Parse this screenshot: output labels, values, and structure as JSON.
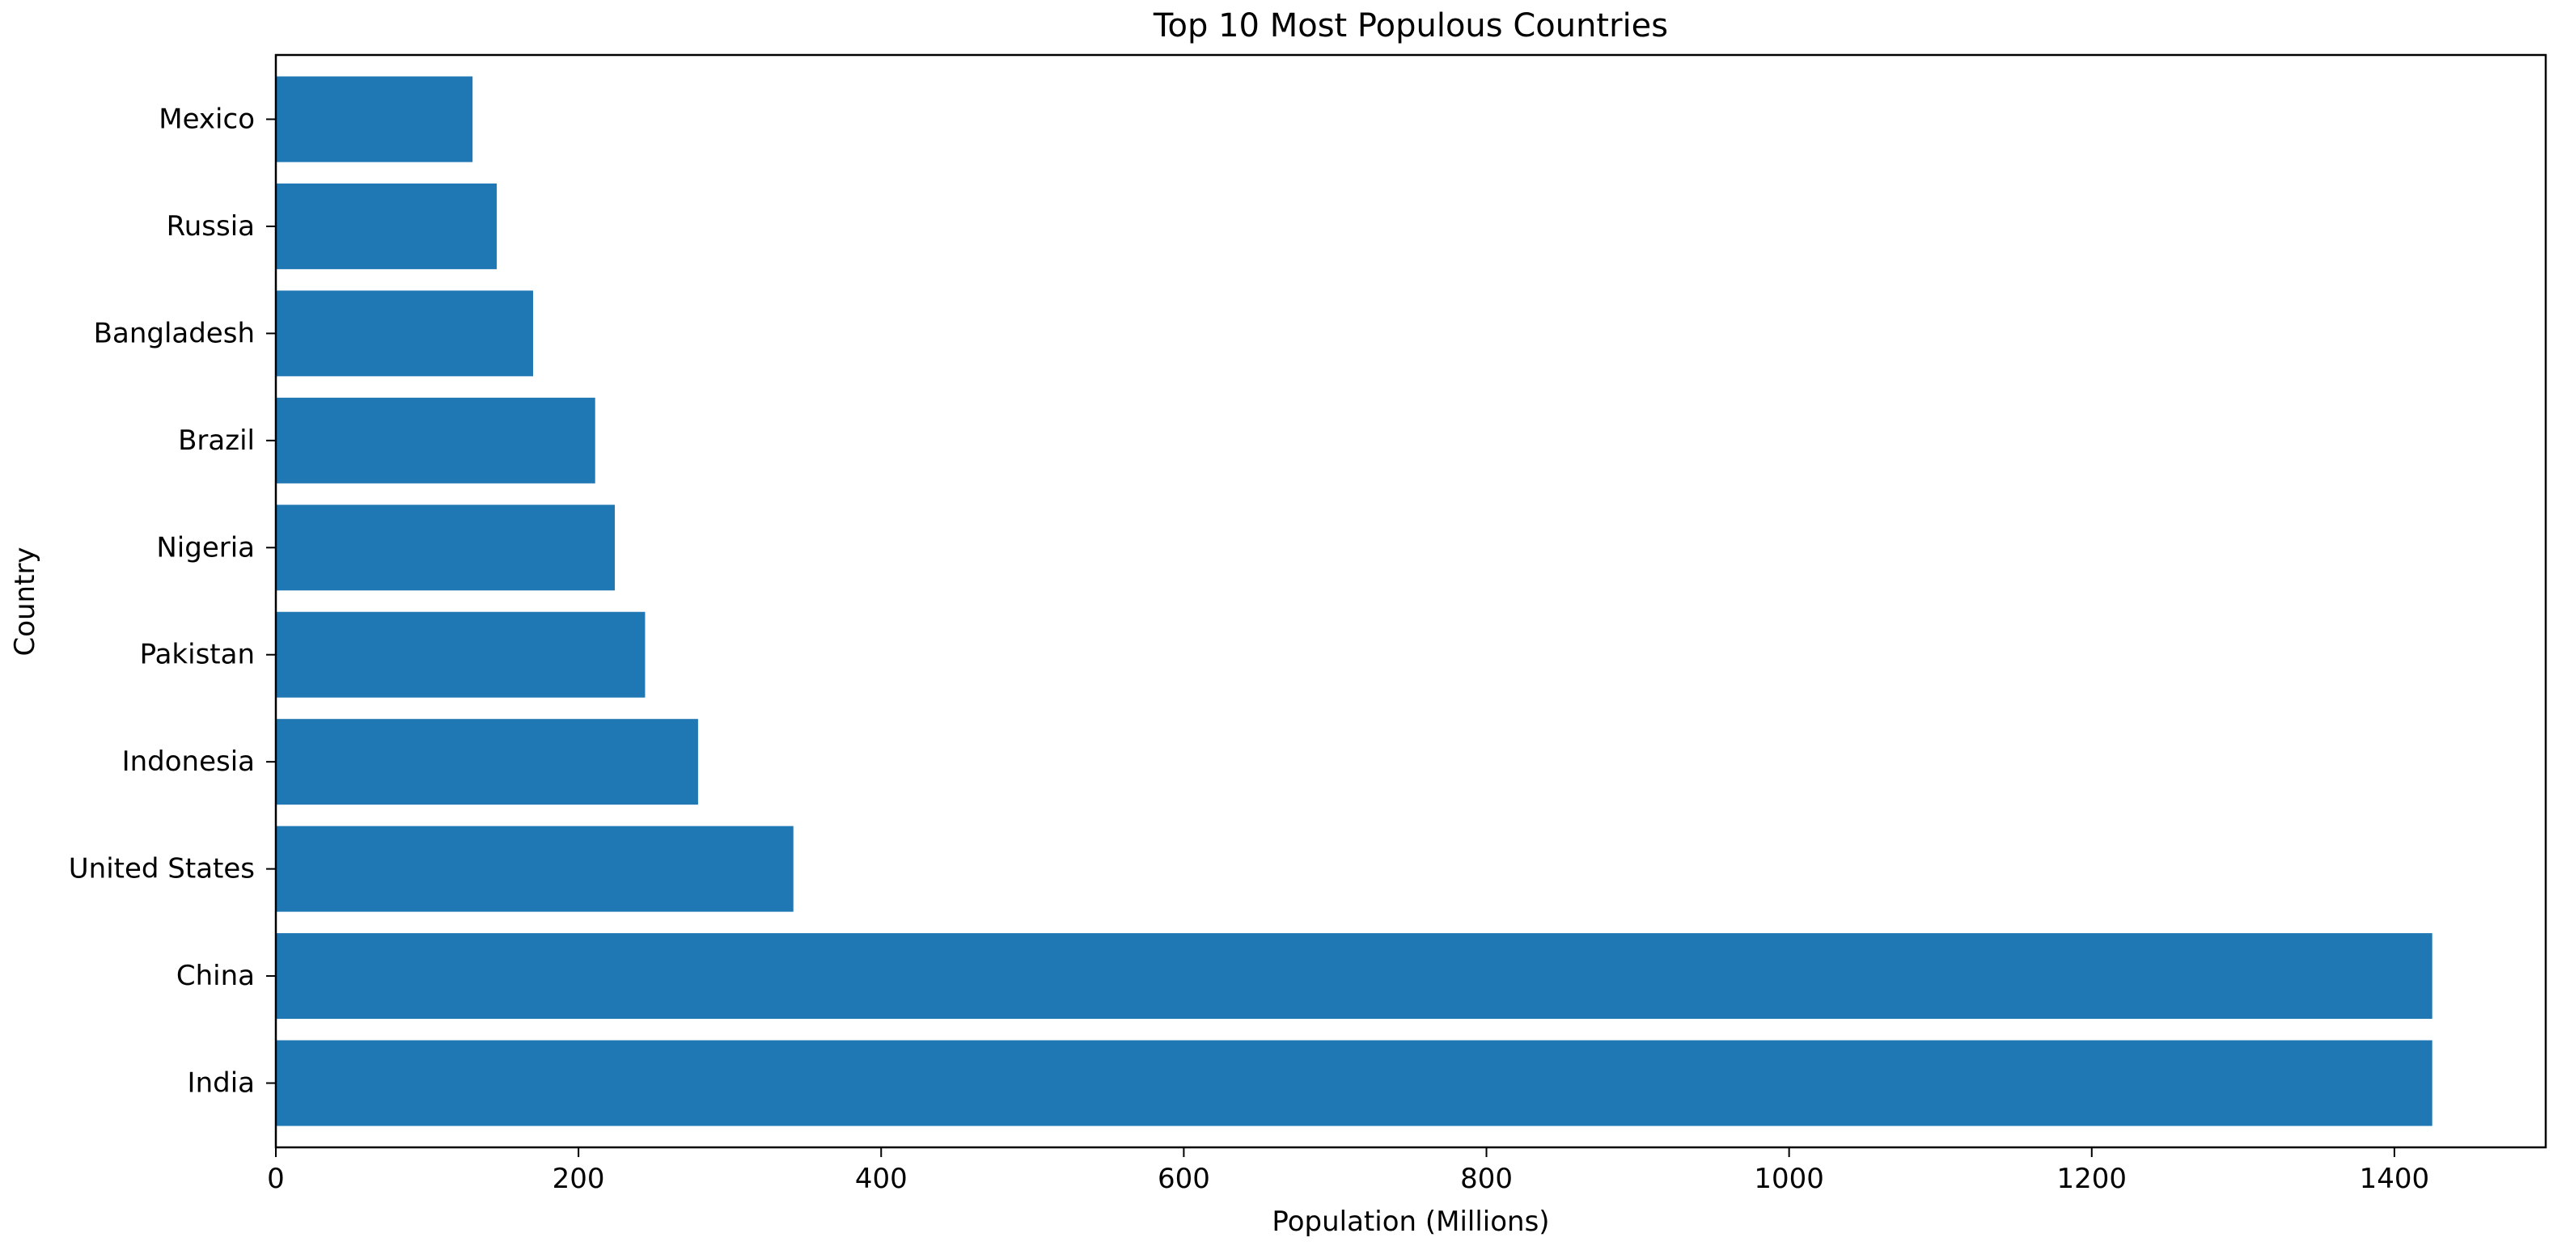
{
  "chart_data": {
    "type": "bar",
    "orientation": "horizontal",
    "title": "Top 10 Most Populous Countries",
    "xlabel": "Population (Millions)",
    "ylabel": "Country",
    "categories": [
      "India",
      "China",
      "United States",
      "Indonesia",
      "Pakistan",
      "Nigeria",
      "Brazil",
      "Bangladesh",
      "Russia",
      "Mexico"
    ],
    "values": [
      1425,
      1425,
      342,
      279,
      244,
      224,
      211,
      170,
      146,
      130
    ],
    "xlim": [
      0,
      1500
    ],
    "xticks": [
      0,
      200,
      400,
      600,
      800,
      1000,
      1200,
      1400
    ],
    "xtick_labels": [
      "0",
      "200",
      "400",
      "600",
      "800",
      "1000",
      "1200",
      "1400"
    ],
    "bar_color": "#1f77b4",
    "grid": false,
    "legend": "none"
  }
}
